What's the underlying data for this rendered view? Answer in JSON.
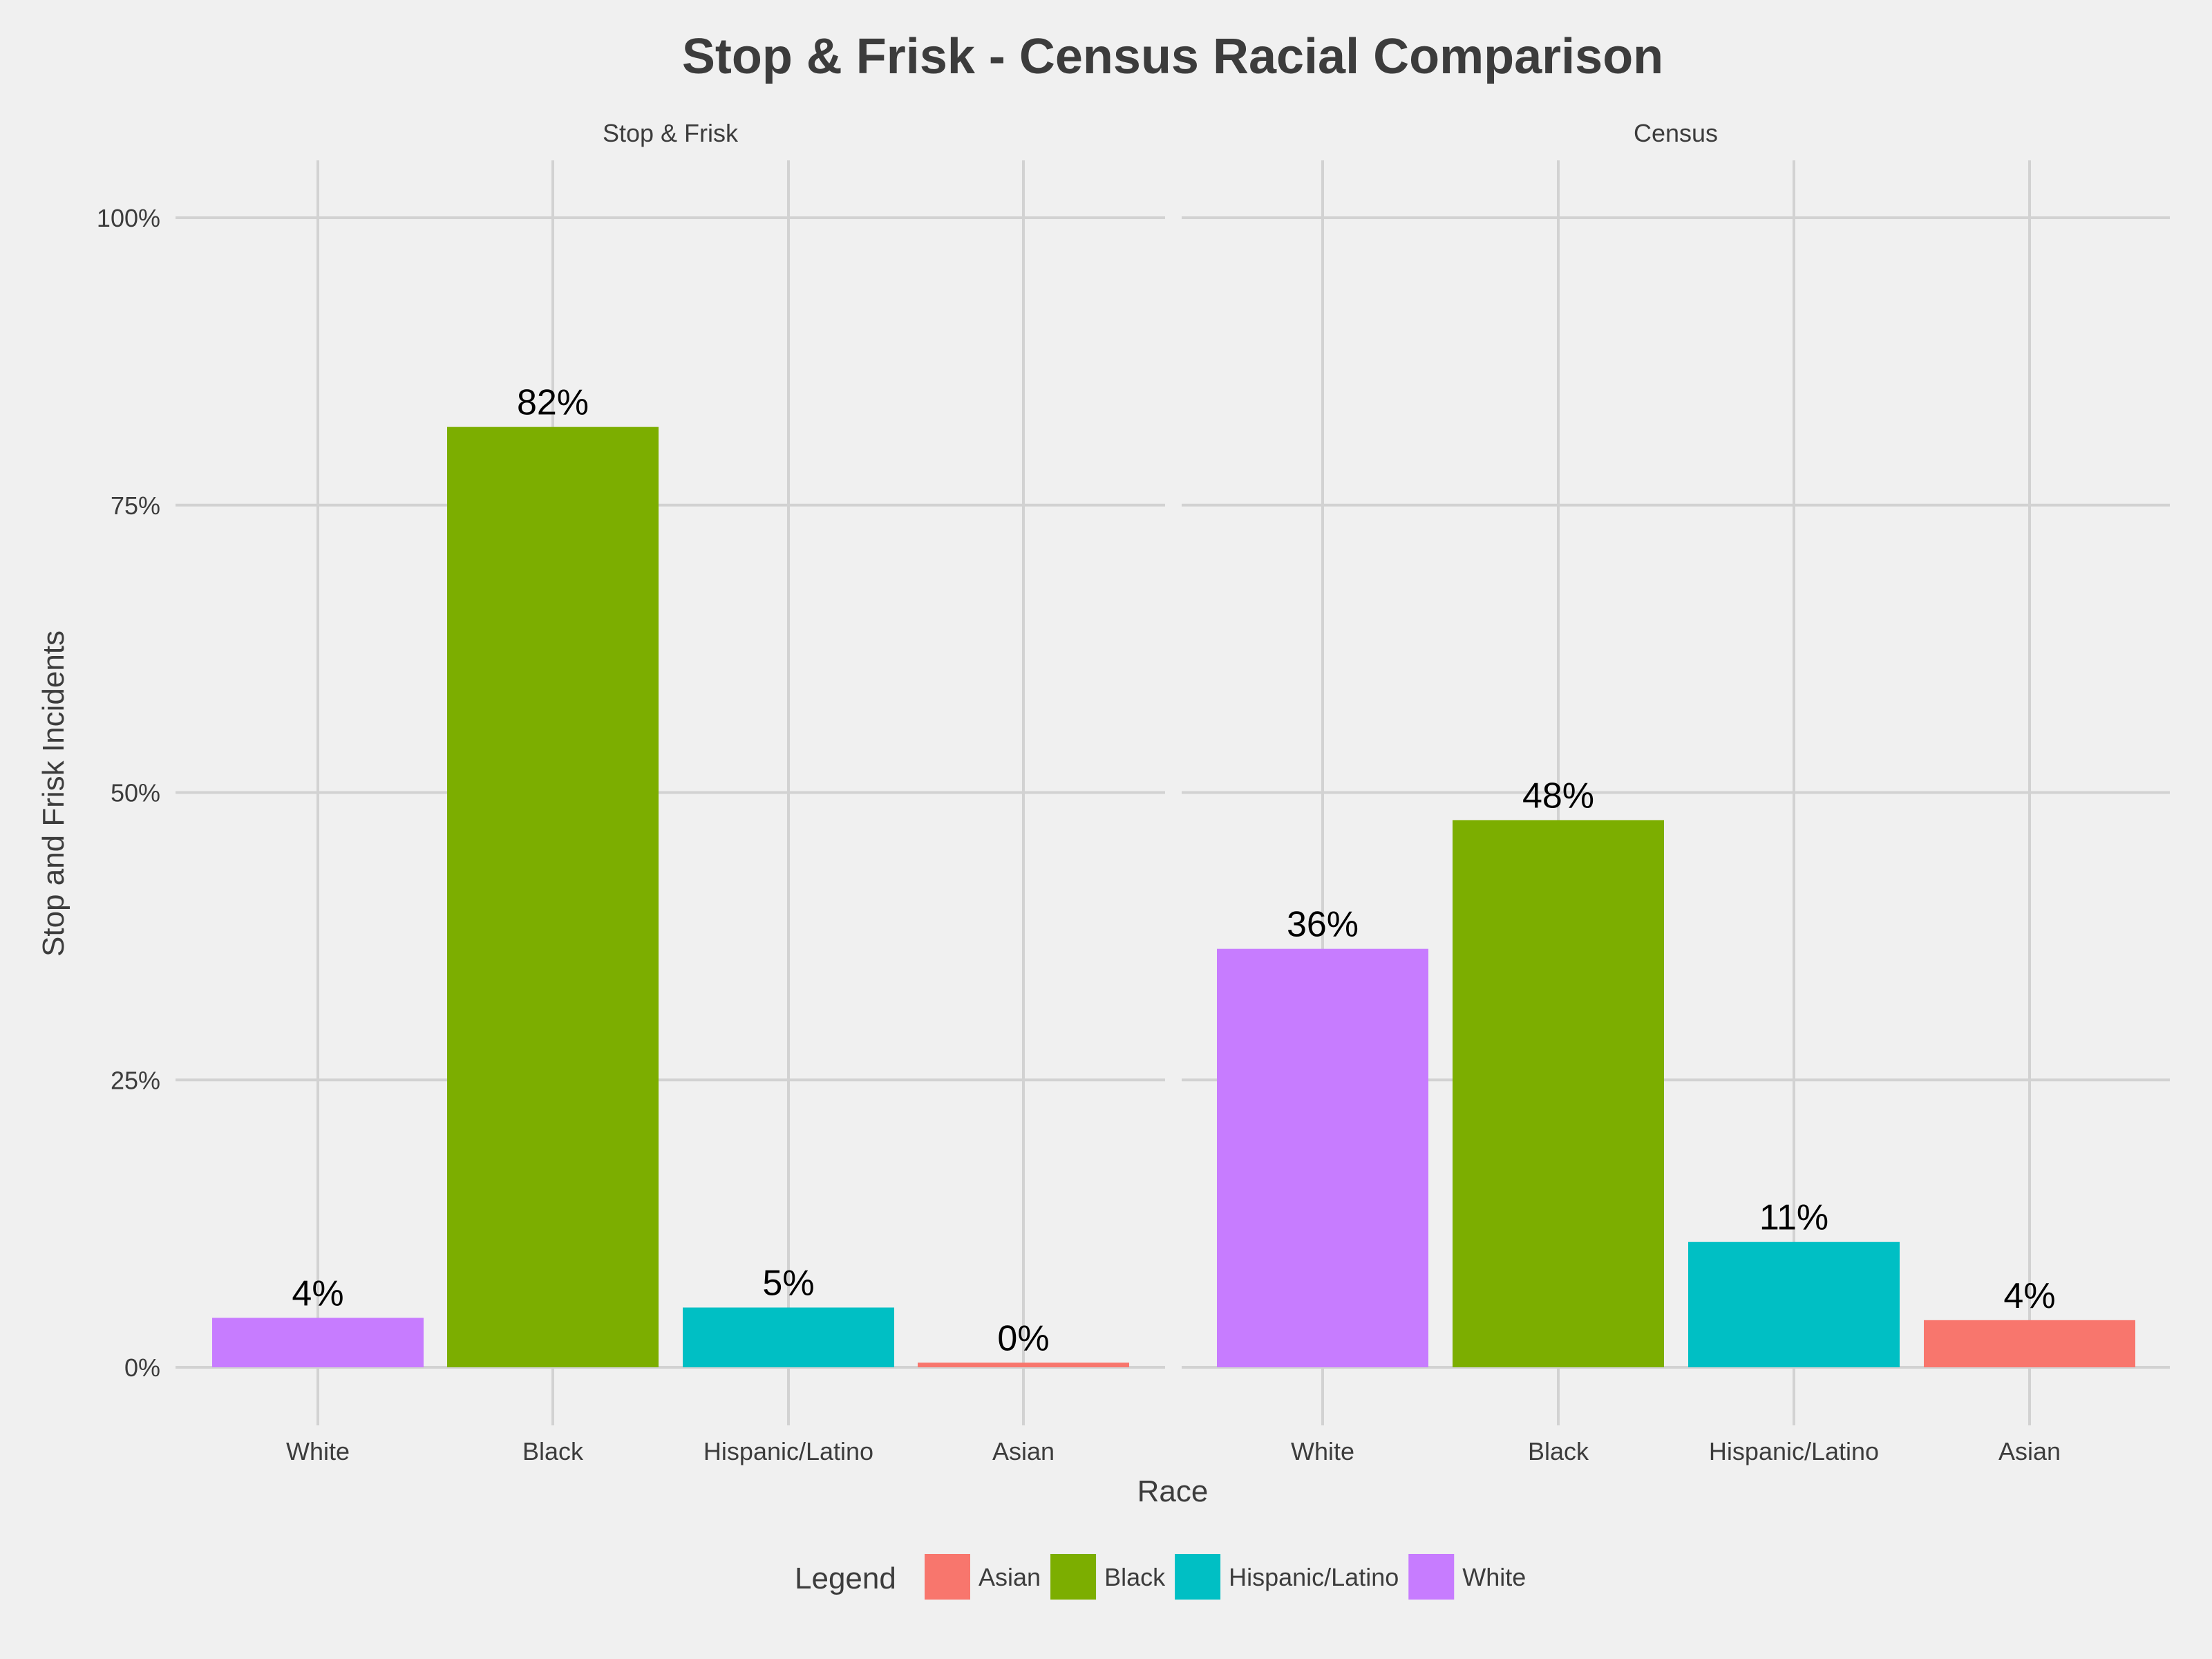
{
  "chart_data": {
    "type": "bar",
    "title": "Stop & Frisk - Census Racial Comparison",
    "xlabel": "Race",
    "ylabel": "Stop and Frisk Incidents",
    "ylim": [
      0,
      100
    ],
    "y_ticks": [
      0,
      25,
      50,
      75,
      100
    ],
    "y_tick_labels": [
      "0%",
      "25%",
      "50%",
      "75%",
      "100%"
    ],
    "grid": true,
    "categories": [
      "White",
      "Black",
      "Hispanic/Latino",
      "Asian"
    ],
    "panels": [
      {
        "name": "Stop & Frisk",
        "values": [
          4.3,
          81.8,
          5.2,
          0.4
        ],
        "labels": [
          "4%",
          "82%",
          "5%",
          "0%"
        ]
      },
      {
        "name": "Census",
        "values": [
          36.4,
          47.6,
          10.9,
          4.1
        ],
        "labels": [
          "36%",
          "48%",
          "11%",
          "4%"
        ]
      }
    ],
    "legend": {
      "title": "Legend",
      "position": "bottom",
      "entries": [
        {
          "name": "Asian",
          "color": "#f8766d"
        },
        {
          "name": "Black",
          "color": "#7cae00"
        },
        {
          "name": "Hispanic/Latino",
          "color": "#00bfc4"
        },
        {
          "name": "White",
          "color": "#c77cff"
        }
      ]
    },
    "colors": {
      "White": "#c77cff",
      "Black": "#7cae00",
      "Hispanic/Latino": "#00bfc4",
      "Asian": "#f8766d"
    }
  }
}
